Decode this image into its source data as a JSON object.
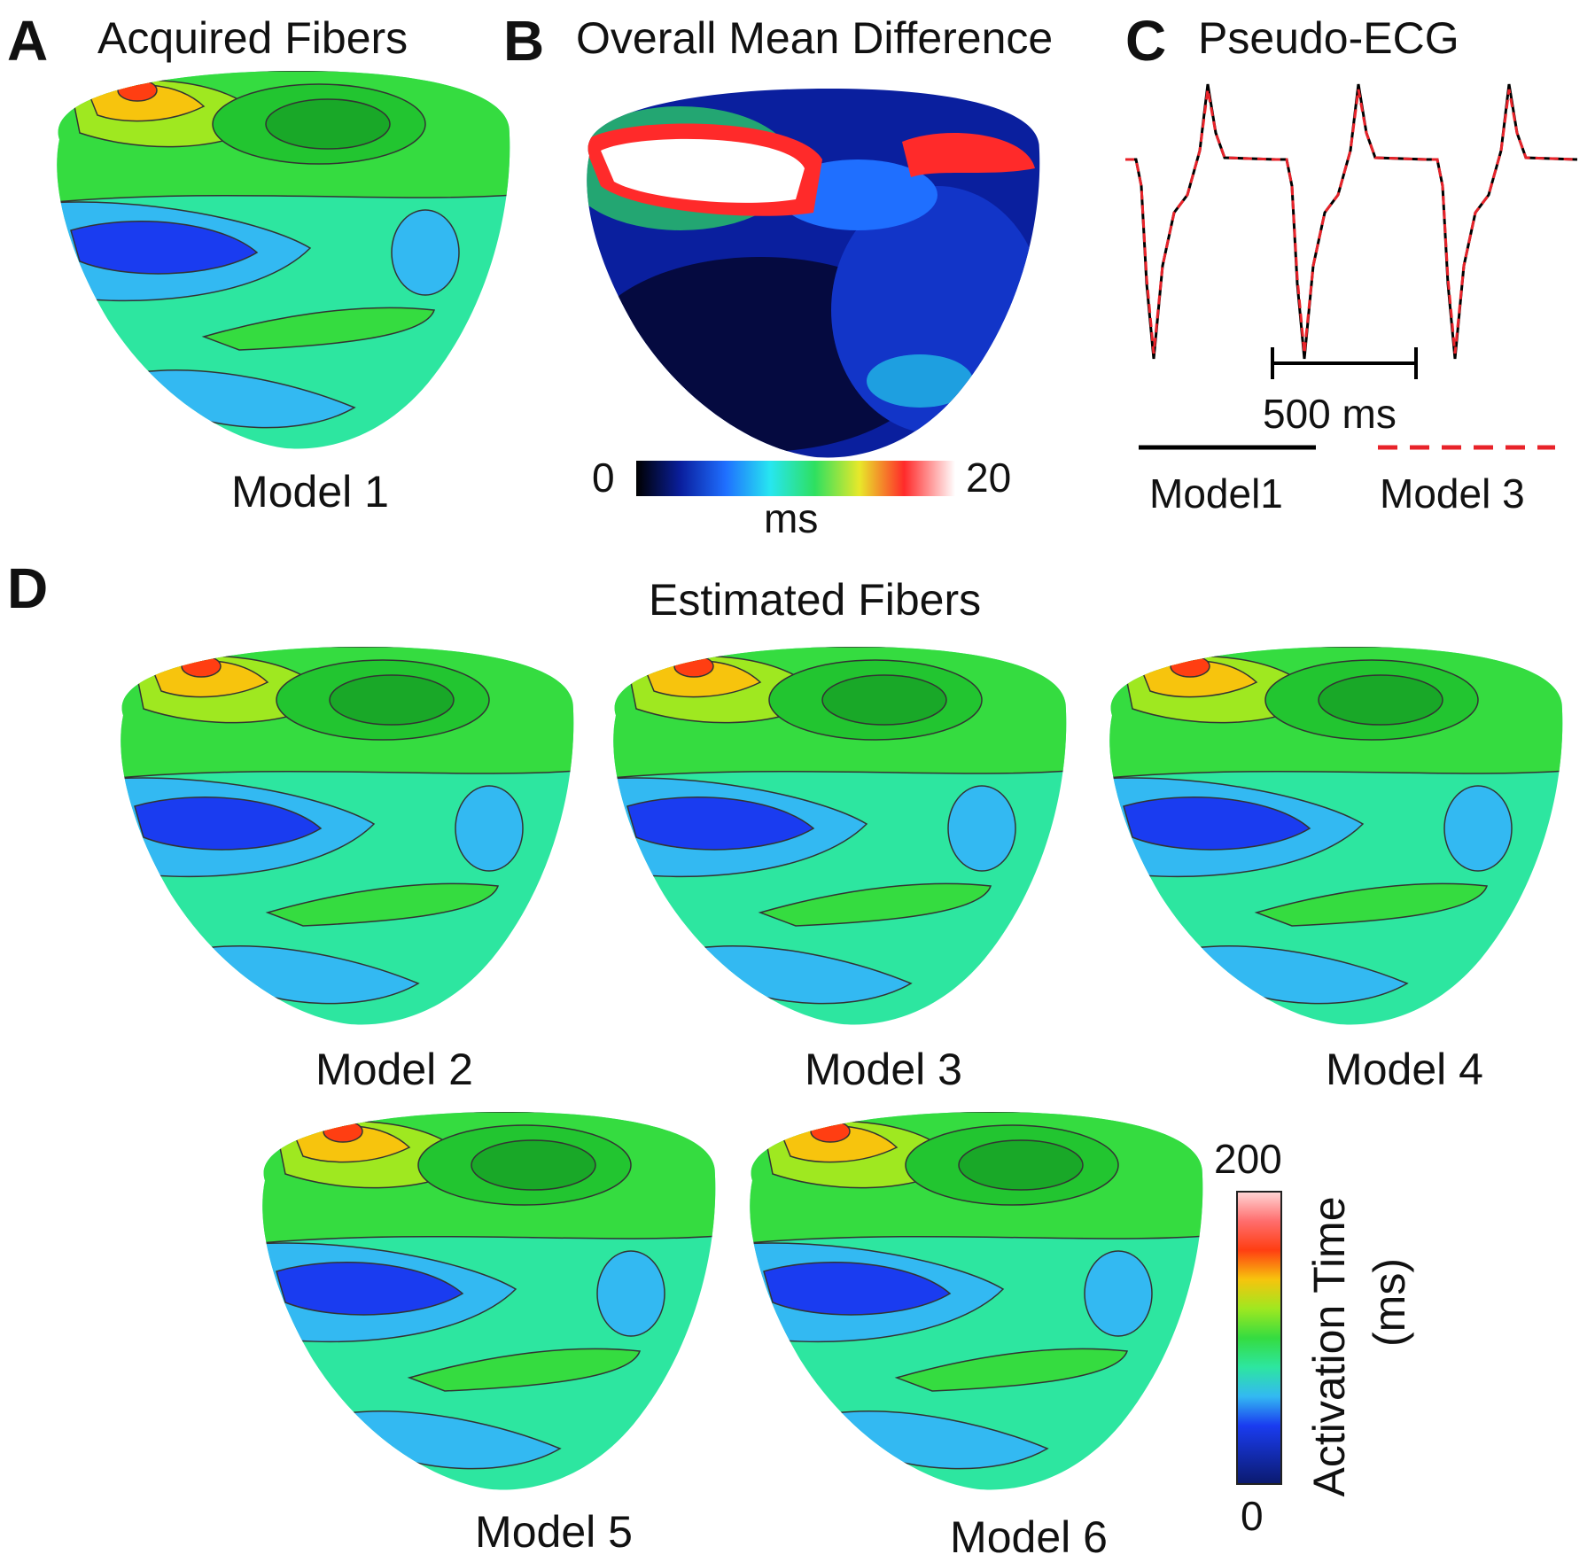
{
  "panels": {
    "a": {
      "letter": "A",
      "title": "Acquired Fibers",
      "model_label": "Model 1"
    },
    "b": {
      "letter": "B",
      "title": "Overall Mean Difference",
      "colorbar": {
        "min": "0",
        "max": "20",
        "unit": "ms"
      }
    },
    "c": {
      "letter": "C",
      "title": "Pseudo-ECG",
      "scale_label": "500 ms",
      "legend": [
        {
          "label": "Model1",
          "color": "#000000",
          "style": "solid"
        },
        {
          "label": "Model 3",
          "color": "#e8232a",
          "style": "dashed"
        }
      ]
    },
    "d": {
      "letter": "D",
      "title": "Estimated Fibers",
      "models": [
        "Model 2",
        "Model 3",
        "Model 4",
        "Model 5",
        "Model 6"
      ],
      "colorbar": {
        "max": "200",
        "min": "0",
        "title": "Activation Time",
        "unit": "(ms)"
      }
    }
  },
  "activation_colors": [
    "#0b1a6e",
    "#1a3cf0",
    "#33b9f2",
    "#2de6a0",
    "#35dc40",
    "#9fe820",
    "#f7c40d",
    "#ff3e12",
    "#ff6e6e",
    "#ffd6d6"
  ],
  "diff_colors": [
    "#000000",
    "#0a1f9e",
    "#1f6fff",
    "#27e6f0",
    "#2ee060",
    "#e8e82a",
    "#ff2a2a",
    "#ffffff"
  ]
}
